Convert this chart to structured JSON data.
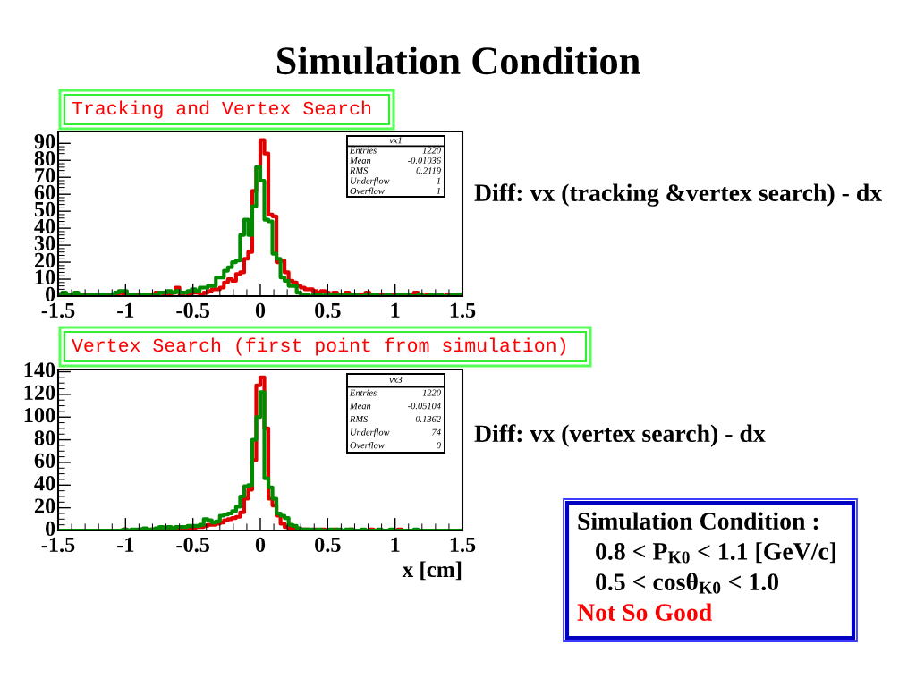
{
  "chart_data": [
    {
      "type": "histogram",
      "title": "Simulation Condition",
      "subtitle": "Tracking and Vertex Search",
      "bins": [
        -1.5,
        -1.47,
        -1.44,
        -1.41,
        -1.38,
        -1.35,
        -1.32,
        -1.29,
        -1.26,
        -1.23,
        -1.2,
        -1.17,
        -1.14,
        -1.11,
        -1.08,
        -1.05,
        -1.02,
        -0.99,
        -0.96,
        -0.93,
        -0.9,
        -0.87,
        -0.84,
        -0.81,
        -0.78,
        -0.75,
        -0.72,
        -0.69,
        -0.66,
        -0.63,
        -0.6,
        -0.57,
        -0.54,
        -0.51,
        -0.48,
        -0.45,
        -0.42,
        -0.39,
        -0.36,
        -0.33,
        -0.3,
        -0.27,
        -0.24,
        -0.21,
        -0.18,
        -0.15,
        -0.12,
        -0.09,
        -0.06,
        -0.03,
        0,
        0.03,
        0.06,
        0.09,
        0.12,
        0.15,
        0.18,
        0.21,
        0.24,
        0.27,
        0.3,
        0.33,
        0.36,
        0.39,
        0.42,
        0.45,
        0.48,
        0.51,
        0.54,
        0.57,
        0.6,
        0.63,
        0.66,
        0.69,
        0.72,
        0.75,
        0.78,
        0.81,
        0.84,
        0.87,
        0.9,
        0.93,
        0.96,
        0.99,
        1.02,
        1.05,
        1.08,
        1.11,
        1.14,
        1.17,
        1.2,
        1.23,
        1.26,
        1.29,
        1.32,
        1.35,
        1.38,
        1.41,
        1.44,
        1.47,
        1.5
      ],
      "series": [
        {
          "color": "#e00000",
          "values": [
            1,
            0,
            1,
            1,
            0,
            1,
            0,
            1,
            0,
            1,
            0,
            1,
            1,
            0,
            1,
            2,
            1,
            0,
            1,
            1,
            1,
            0,
            1,
            1,
            2,
            2,
            1,
            1,
            2,
            5,
            1,
            2,
            1,
            2,
            2,
            1,
            2,
            3,
            4,
            4,
            5,
            8,
            10,
            9,
            13,
            14,
            22,
            26,
            62,
            76,
            92,
            84,
            48,
            47,
            20,
            21,
            14,
            9,
            8,
            6,
            5,
            4,
            4,
            3,
            2,
            3,
            2,
            1,
            2,
            1,
            1,
            2,
            1,
            0,
            1,
            1,
            2,
            1,
            0,
            1,
            1,
            0,
            1,
            1,
            0,
            1,
            0,
            1,
            2,
            1,
            0,
            1,
            1,
            0,
            1,
            0,
            1,
            0,
            1,
            1
          ]
        },
        {
          "color": "#008a00",
          "values": [
            1,
            2,
            1,
            0,
            2,
            1,
            1,
            0,
            1,
            1,
            1,
            1,
            0,
            1,
            2,
            3,
            3,
            1,
            1,
            0,
            1,
            1,
            1,
            0,
            1,
            2,
            2,
            3,
            2,
            3,
            2,
            2,
            3,
            4,
            3,
            5,
            5,
            6,
            6,
            11,
            11,
            15,
            17,
            20,
            21,
            36,
            45,
            36,
            53,
            76,
            68,
            45,
            44,
            25,
            22,
            11,
            9,
            6,
            6,
            2,
            1,
            1,
            0,
            1,
            1,
            0,
            1,
            1,
            0,
            1,
            0,
            1,
            0,
            1,
            0,
            0,
            1,
            0,
            1,
            0,
            0,
            1,
            0,
            0,
            1,
            0,
            1,
            0,
            0,
            1,
            0,
            0,
            1,
            0,
            1,
            0,
            0,
            1,
            0,
            1
          ]
        }
      ],
      "xlim": [
        -1.5,
        1.5
      ],
      "xticks": [
        -1.5,
        {
          "value": -1.4,
          "label": null
        },
        {
          "value": -1.3,
          "label": null
        },
        {
          "value": -1.2,
          "label": null
        },
        {
          "value": -1.1,
          "label": null
        },
        -1,
        {
          "value": -0.9,
          "label": null
        },
        {
          "value": -0.8,
          "label": null
        },
        {
          "value": -0.7,
          "label": null
        },
        {
          "value": -0.6,
          "label": null
        },
        -0.5,
        {
          "value": -0.4,
          "label": null
        },
        {
          "value": -0.3,
          "label": null
        },
        {
          "value": -0.2,
          "label": null
        },
        {
          "value": -0.1,
          "label": null
        },
        0,
        {
          "value": 0.1,
          "label": null
        },
        {
          "value": 0.2,
          "label": null
        },
        {
          "value": 0.3,
          "label": null
        },
        {
          "value": 0.4,
          "label": null
        },
        0.5,
        {
          "value": 0.6,
          "label": null
        },
        {
          "value": 0.7,
          "label": null
        },
        {
          "value": 0.8,
          "label": null
        },
        {
          "value": 0.9,
          "label": null
        },
        1,
        {
          "value": 1.1,
          "label": null
        },
        {
          "value": 1.2,
          "label": null
        },
        {
          "value": 1.3,
          "label": null
        },
        {
          "value": 1.4,
          "label": null
        },
        1.5
      ],
      "ylim": [
        0,
        97
      ],
      "yticks": [
        0,
        {
          "value": 2,
          "label": null
        },
        {
          "value": 4,
          "label": null
        },
        {
          "value": 6,
          "label": null
        },
        {
          "value": 8,
          "label": null
        },
        10,
        {
          "value": 12,
          "label": null
        },
        {
          "value": 14,
          "label": null
        },
        {
          "value": 16,
          "label": null
        },
        {
          "value": 18,
          "label": null
        },
        20,
        {
          "value": 22,
          "label": null
        },
        {
          "value": 24,
          "label": null
        },
        {
          "value": 26,
          "label": null
        },
        {
          "value": 28,
          "label": null
        },
        30,
        {
          "value": 32,
          "label": null
        },
        {
          "value": 34,
          "label": null
        },
        {
          "value": 36,
          "label": null
        },
        {
          "value": 38,
          "label": null
        },
        40,
        {
          "value": 42,
          "label": null
        },
        {
          "value": 44,
          "label": null
        },
        {
          "value": 46,
          "label": null
        },
        {
          "value": 48,
          "label": null
        },
        50,
        {
          "value": 52,
          "label": null
        },
        {
          "value": 54,
          "label": null
        },
        {
          "value": 56,
          "label": null
        },
        {
          "value": 58,
          "label": null
        },
        60,
        {
          "value": 62,
          "label": null
        },
        {
          "value": 64,
          "label": null
        },
        {
          "value": 66,
          "label": null
        },
        {
          "value": 68,
          "label": null
        },
        70,
        {
          "value": 72,
          "label": null
        },
        {
          "value": 74,
          "label": null
        },
        {
          "value": 76,
          "label": null
        },
        {
          "value": 78,
          "label": null
        },
        80,
        {
          "value": 82,
          "label": null
        },
        {
          "value": 84,
          "label": null
        },
        {
          "value": 86,
          "label": null
        },
        {
          "value": 88,
          "label": null
        },
        90
      ],
      "annotations": [
        "vx1",
        "Entries",
        "1220",
        "Mean",
        "-0.01036",
        "RMS",
        "0.2119",
        "Underflow",
        "1",
        "Overflow",
        "1",
        "Diff: vx (tracking &vertex search) - dx"
      ]
    },
    {
      "type": "histogram",
      "title": "Vertex Search (first point from simulation)",
      "xlabel": "x [cm]",
      "bins": [
        -1.5,
        -1.47,
        -1.44,
        -1.41,
        -1.38,
        -1.35,
        -1.32,
        -1.29,
        -1.26,
        -1.23,
        -1.2,
        -1.17,
        -1.14,
        -1.11,
        -1.08,
        -1.05,
        -1.02,
        -0.99,
        -0.96,
        -0.93,
        -0.9,
        -0.87,
        -0.84,
        -0.81,
        -0.78,
        -0.75,
        -0.72,
        -0.69,
        -0.66,
        -0.63,
        -0.6,
        -0.57,
        -0.54,
        -0.51,
        -0.48,
        -0.45,
        -0.42,
        -0.39,
        -0.36,
        -0.33,
        -0.3,
        -0.27,
        -0.24,
        -0.21,
        -0.18,
        -0.15,
        -0.12,
        -0.09,
        -0.06,
        -0.03,
        0,
        0.03,
        0.06,
        0.09,
        0.12,
        0.15,
        0.18,
        0.21,
        0.24,
        0.27,
        0.3,
        0.33,
        0.36,
        0.39,
        0.42,
        0.45,
        0.48,
        0.51,
        0.54,
        0.57,
        0.6,
        0.63,
        0.66,
        0.69,
        0.72,
        0.75,
        0.78,
        0.81,
        0.84,
        0.87,
        0.9,
        0.93,
        0.96,
        0.99,
        1.02,
        1.05,
        1.08,
        1.11,
        1.14,
        1.17,
        1.2,
        1.23,
        1.26,
        1.29,
        1.32,
        1.35,
        1.38,
        1.41,
        1.44,
        1.47,
        1.5
      ],
      "series": [
        {
          "color": "#e00000",
          "values": [
            0,
            0,
            0,
            0,
            0,
            0,
            0,
            0,
            0,
            0,
            0,
            0,
            0,
            0,
            0,
            0,
            1,
            0,
            0,
            0,
            1,
            1,
            0,
            1,
            1,
            2,
            1,
            2,
            2,
            1,
            1,
            2,
            2,
            2,
            3,
            3,
            4,
            5,
            5,
            6,
            7,
            9,
            10,
            11,
            12,
            16,
            28,
            36,
            62,
            128,
            135,
            90,
            28,
            22,
            13,
            6,
            3,
            2,
            2,
            1,
            1,
            1,
            0,
            1,
            0,
            1,
            0,
            0,
            1,
            0,
            0,
            0,
            1,
            0,
            0,
            0,
            0,
            1,
            0,
            0,
            0,
            0,
            0,
            0,
            1,
            0,
            0,
            0,
            0,
            0,
            0,
            0,
            0,
            0,
            0,
            0,
            0,
            0,
            0,
            0
          ]
        },
        {
          "color": "#008a00",
          "values": [
            0,
            0,
            0,
            0,
            0,
            0,
            0,
            0,
            0,
            0,
            0,
            0,
            0,
            0,
            0,
            0,
            1,
            0,
            1,
            1,
            1,
            2,
            1,
            1,
            2,
            3,
            2,
            3,
            2,
            3,
            3,
            3,
            4,
            4,
            4,
            5,
            10,
            9,
            7,
            8,
            13,
            14,
            15,
            17,
            21,
            30,
            39,
            40,
            80,
            100,
            122,
            46,
            38,
            28,
            15,
            13,
            11,
            5,
            4,
            2,
            1,
            1,
            1,
            0,
            1,
            0,
            0,
            1,
            0,
            1,
            0,
            1,
            1,
            0,
            0,
            1,
            0,
            0,
            0,
            1,
            0,
            0,
            1,
            0,
            0,
            0,
            0,
            0,
            1,
            0,
            0,
            0,
            0,
            0,
            0,
            0,
            0,
            0,
            0,
            0
          ]
        }
      ],
      "xlim": [
        -1.5,
        1.5
      ],
      "xticks": [
        -1.5,
        {
          "value": -1.4,
          "label": null
        },
        {
          "value": -1.3,
          "label": null
        },
        {
          "value": -1.2,
          "label": null
        },
        {
          "value": -1.1,
          "label": null
        },
        -1,
        {
          "value": -0.9,
          "label": null
        },
        {
          "value": -0.8,
          "label": null
        },
        {
          "value": -0.7,
          "label": null
        },
        {
          "value": -0.6,
          "label": null
        },
        -0.5,
        {
          "value": -0.4,
          "label": null
        },
        {
          "value": -0.3,
          "label": null
        },
        {
          "value": -0.2,
          "label": null
        },
        {
          "value": -0.1,
          "label": null
        },
        0,
        {
          "value": 0.1,
          "label": null
        },
        {
          "value": 0.2,
          "label": null
        },
        {
          "value": 0.3,
          "label": null
        },
        {
          "value": 0.4,
          "label": null
        },
        0.5,
        {
          "value": 0.6,
          "label": null
        },
        {
          "value": 0.7,
          "label": null
        },
        {
          "value": 0.8,
          "label": null
        },
        {
          "value": 0.9,
          "label": null
        },
        1,
        {
          "value": 1.1,
          "label": null
        },
        {
          "value": 1.2,
          "label": null
        },
        {
          "value": 1.3,
          "label": null
        },
        {
          "value": 1.4,
          "label": null
        },
        1.5
      ],
      "ylim": [
        0,
        142
      ],
      "yticks": [
        0,
        {
          "value": 5,
          "label": null
        },
        {
          "value": 10,
          "label": null
        },
        {
          "value": 15,
          "label": null
        },
        20,
        {
          "value": 25,
          "label": null
        },
        {
          "value": 30,
          "label": null
        },
        {
          "value": 35,
          "label": null
        },
        40,
        {
          "value": 45,
          "label": null
        },
        {
          "value": 50,
          "label": null
        },
        {
          "value": 55,
          "label": null
        },
        60,
        {
          "value": 65,
          "label": null
        },
        {
          "value": 70,
          "label": null
        },
        {
          "value": 75,
          "label": null
        },
        80,
        {
          "value": 85,
          "label": null
        },
        {
          "value": 90,
          "label": null
        },
        {
          "value": 95,
          "label": null
        },
        100,
        {
          "value": 105,
          "label": null
        },
        {
          "value": 110,
          "label": null
        },
        {
          "value": 115,
          "label": null
        },
        120,
        {
          "value": 125,
          "label": null
        },
        {
          "value": 130,
          "label": null
        },
        {
          "value": 135,
          "label": null
        },
        140
      ],
      "annotations": [
        "vx3",
        "Entries",
        "1220",
        "Mean",
        "-0.05104",
        "RMS",
        "0.1362",
        "Underflow",
        "74",
        "Overflow",
        "0",
        "Diff: vx (vertex search) - dx"
      ]
    },
    {
      "type": "other",
      "title": "Simulation Condition :",
      "annotations": [
        "0.8 < P$_{K0}$ < 1.1 [GeV/c]",
        "0.5 < cosθ$_{K0}$ < 1.0",
        "Not So Good"
      ]
    }
  ]
}
